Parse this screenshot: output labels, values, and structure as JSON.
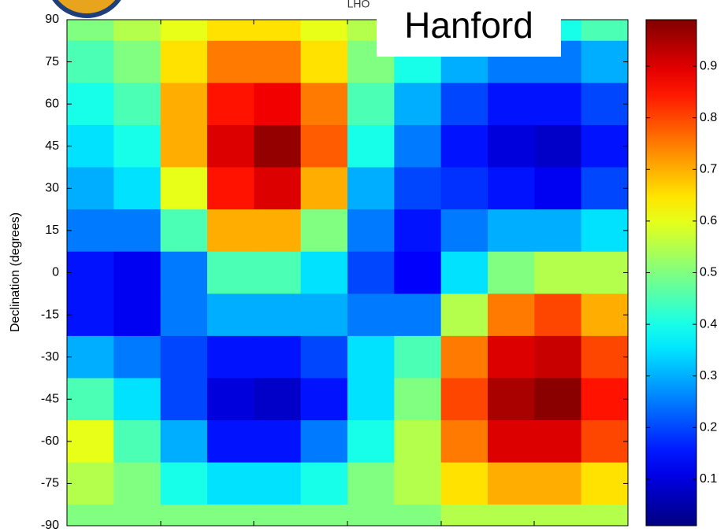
{
  "chart_data": {
    "type": "heatmap",
    "title": "LHO",
    "annotation": "Hanford",
    "ylabel": "Declination (degrees)",
    "y": [
      90,
      75,
      60,
      45,
      30,
      15,
      0,
      -15,
      -30,
      -45,
      -60,
      -75,
      -90
    ],
    "values": [
      [
        0.5,
        0.55,
        0.6,
        0.65,
        0.65,
        0.6,
        0.55,
        0.5,
        0.45,
        0.4,
        0.4,
        0.45
      ],
      [
        0.45,
        0.5,
        0.65,
        0.75,
        0.75,
        0.65,
        0.5,
        0.4,
        0.3,
        0.25,
        0.25,
        0.3
      ],
      [
        0.4,
        0.45,
        0.7,
        0.85,
        0.88,
        0.75,
        0.45,
        0.3,
        0.2,
        0.15,
        0.15,
        0.2
      ],
      [
        0.35,
        0.4,
        0.7,
        0.9,
        0.97,
        0.78,
        0.4,
        0.25,
        0.15,
        0.1,
        0.08,
        0.15
      ],
      [
        0.3,
        0.35,
        0.6,
        0.85,
        0.9,
        0.7,
        0.3,
        0.2,
        0.18,
        0.15,
        0.12,
        0.2
      ],
      [
        0.25,
        0.25,
        0.45,
        0.7,
        0.7,
        0.5,
        0.25,
        0.15,
        0.25,
        0.3,
        0.3,
        0.35
      ],
      [
        0.15,
        0.12,
        0.25,
        0.45,
        0.45,
        0.35,
        0.2,
        0.13,
        0.35,
        0.5,
        0.55,
        0.55
      ],
      [
        0.15,
        0.12,
        0.25,
        0.3,
        0.3,
        0.3,
        0.25,
        0.25,
        0.55,
        0.75,
        0.8,
        0.7
      ],
      [
        0.3,
        0.25,
        0.2,
        0.15,
        0.15,
        0.2,
        0.35,
        0.45,
        0.75,
        0.9,
        0.92,
        0.8
      ],
      [
        0.45,
        0.35,
        0.2,
        0.1,
        0.08,
        0.15,
        0.35,
        0.5,
        0.8,
        0.95,
        0.98,
        0.85
      ],
      [
        0.6,
        0.45,
        0.3,
        0.15,
        0.15,
        0.25,
        0.4,
        0.55,
        0.75,
        0.9,
        0.9,
        0.8
      ],
      [
        0.55,
        0.5,
        0.4,
        0.35,
        0.35,
        0.4,
        0.5,
        0.55,
        0.65,
        0.7,
        0.7,
        0.65
      ],
      [
        0.5,
        0.5,
        0.5,
        0.5,
        0.5,
        0.5,
        0.5,
        0.5,
        0.55,
        0.55,
        0.55,
        0.55
      ]
    ],
    "ylim": [
      -90,
      90
    ],
    "yticks": [
      90,
      75,
      60,
      45,
      30,
      15,
      0,
      -15,
      -30,
      -45,
      -60,
      -75,
      -90
    ],
    "colorbar": {
      "colormap": "jet",
      "clim": [
        0.01,
        0.99
      ],
      "ticks": [
        0.1,
        0.2,
        0.3,
        0.4,
        0.5,
        0.6,
        0.7,
        0.8,
        0.9
      ]
    }
  }
}
